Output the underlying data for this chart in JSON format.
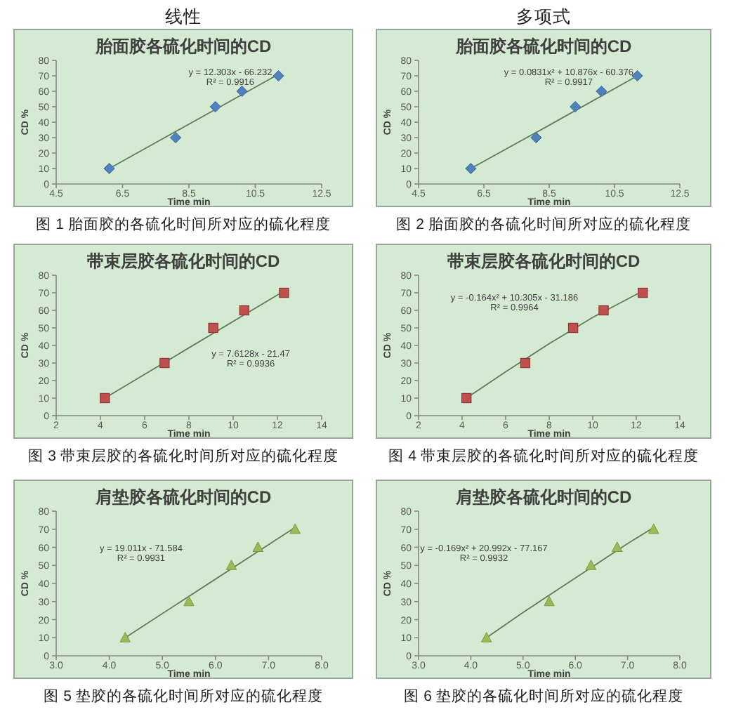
{
  "chart_data": [
    {
      "type": "scatter",
      "title": "胎面胶各硫化时间的CD",
      "xlabel": "Time min",
      "ylabel": "CD %",
      "xlim": [
        4.5,
        12.5
      ],
      "xticks": [
        4.5,
        6.5,
        8.5,
        10.5,
        12.5
      ],
      "ylim": [
        0,
        80
      ],
      "yticks": [
        0,
        10,
        20,
        30,
        40,
        50,
        60,
        70,
        80
      ],
      "series": [
        {
          "color": "#4f81bd",
          "marker": "diamond",
          "x": [
            6.1,
            8.1,
            9.3,
            10.1,
            11.2
          ],
          "values": [
            10,
            30,
            50,
            60,
            70
          ]
        },
        {
          "type": "line",
          "color": "#5e7d54",
          "x": [
            6.1,
            11.2
          ],
          "values": [
            10,
            71
          ]
        }
      ],
      "annotations": [
        "线性",
        "y = 12.303x - 66.232",
        "R² = 0.9916",
        "图 1 胎面胶的各硫化时间所对应的硫化程度"
      ]
    },
    {
      "type": "scatter",
      "title": "胎面胶各硫化时间的CD",
      "xlabel": "Time min",
      "ylabel": "CD %",
      "xlim": [
        4.5,
        12.5
      ],
      "xticks": [
        4.5,
        6.5,
        8.5,
        10.5,
        12.5
      ],
      "ylim": [
        0,
        80
      ],
      "yticks": [
        0,
        10,
        20,
        30,
        40,
        50,
        60,
        70,
        80
      ],
      "series": [
        {
          "color": "#4f81bd",
          "marker": "diamond",
          "x": [
            6.1,
            8.1,
            9.3,
            10.1,
            11.2
          ],
          "values": [
            10,
            30,
            50,
            60,
            70
          ]
        },
        {
          "type": "line",
          "color": "#5e7d54",
          "x": [
            6.1,
            8.5,
            11.2
          ],
          "values": [
            10,
            38,
            70
          ]
        }
      ],
      "annotations": [
        "多项式",
        "y = 0.0831x² + 10.876x - 60.376",
        "R² = 0.9917",
        "图 2 胎面胶的各硫化时间所对应的硫化程度"
      ]
    },
    {
      "type": "scatter",
      "title": "带束层胶各硫化时间的CD",
      "xlabel": "Time min",
      "ylabel": "CD %",
      "xlim": [
        2,
        14
      ],
      "xticks": [
        2,
        4,
        6,
        8,
        10,
        12,
        14
      ],
      "ylim": [
        0,
        80
      ],
      "yticks": [
        0,
        10,
        20,
        30,
        40,
        50,
        60,
        70,
        80
      ],
      "series": [
        {
          "color": "#c0504d",
          "marker": "square",
          "x": [
            4.2,
            6.9,
            9.1,
            10.5,
            12.3
          ],
          "values": [
            10,
            30,
            50,
            60,
            70
          ]
        },
        {
          "type": "line",
          "color": "#5e7d54",
          "x": [
            4.2,
            12.3
          ],
          "values": [
            10,
            71
          ]
        }
      ],
      "annotations": [
        "y = 7.6128x - 21.47",
        "R² = 0.9936",
        "图 3 带束层胶的各硫化时间所对应的硫化程度"
      ]
    },
    {
      "type": "scatter",
      "title": "带束层胶各硫化时间的CD",
      "xlabel": "Time min",
      "ylabel": "CD %",
      "xlim": [
        2,
        14
      ],
      "xticks": [
        2,
        4,
        6,
        8,
        10,
        12,
        14
      ],
      "ylim": [
        0,
        80
      ],
      "yticks": [
        0,
        10,
        20,
        30,
        40,
        50,
        60,
        70,
        80
      ],
      "series": [
        {
          "color": "#c0504d",
          "marker": "square",
          "x": [
            4.2,
            6.9,
            9.1,
            10.5,
            12.3
          ],
          "values": [
            10,
            30,
            50,
            60,
            70
          ]
        },
        {
          "type": "line",
          "color": "#5e7d54",
          "x": [
            4.2,
            6,
            8,
            10,
            12.3
          ],
          "values": [
            10,
            25,
            41,
            56,
            71
          ]
        }
      ],
      "annotations": [
        "y = -0.164x² + 10.305x - 31.186",
        "R² = 0.9964",
        "图 4 带束层胶的各硫化时间所对应的硫化程度"
      ]
    },
    {
      "type": "scatter",
      "title": "肩垫胶各硫化时间的CD",
      "xlabel": "Time min",
      "ylabel": "CD %",
      "xlim": [
        3,
        8
      ],
      "xticks": [
        {
          "value": 3,
          "label": "3.0"
        },
        {
          "value": 4,
          "label": "4.0"
        },
        {
          "value": 5,
          "label": "5.0"
        },
        {
          "value": 6,
          "label": "6.0"
        },
        {
          "value": 7,
          "label": "7.0"
        },
        {
          "value": 8,
          "label": "8.0"
        }
      ],
      "ylim": [
        0,
        80
      ],
      "yticks": [
        0,
        10,
        20,
        30,
        40,
        50,
        60,
        70,
        80
      ],
      "series": [
        {
          "color": "#9bbb59",
          "marker": "triangle",
          "x": [
            4.3,
            5.5,
            6.3,
            6.8,
            7.5
          ],
          "values": [
            10,
            30,
            50,
            60,
            70
          ]
        },
        {
          "type": "line",
          "color": "#5e7d54",
          "x": [
            4.3,
            7.5
          ],
          "values": [
            10,
            71
          ]
        }
      ],
      "annotations": [
        "y = 19.011x - 71.584",
        "R² = 0.9931",
        "图 5 垫胶的各硫化时间所对应的硫化程度"
      ]
    },
    {
      "type": "scatter",
      "title": "肩垫胶各硫化时间的CD",
      "xlabel": "Time min",
      "ylabel": "CD %",
      "xlim": [
        3,
        8
      ],
      "xticks": [
        {
          "value": 3,
          "label": "3.0"
        },
        {
          "value": 4,
          "label": "4.0"
        },
        {
          "value": 5,
          "label": "5.0"
        },
        {
          "value": 6,
          "label": "6.0"
        },
        {
          "value": 7,
          "label": "7.0"
        },
        {
          "value": 8,
          "label": "8.0"
        }
      ],
      "ylim": [
        0,
        80
      ],
      "yticks": [
        0,
        10,
        20,
        30,
        40,
        50,
        60,
        70,
        80
      ],
      "series": [
        {
          "color": "#9bbb59",
          "marker": "triangle",
          "x": [
            4.3,
            5.5,
            6.3,
            6.8,
            7.5
          ],
          "values": [
            10,
            30,
            50,
            60,
            70
          ]
        },
        {
          "type": "line",
          "color": "#5e7d54",
          "x": [
            4.3,
            5,
            6,
            7,
            7.5
          ],
          "values": [
            10,
            24,
            43,
            62,
            71
          ]
        }
      ],
      "annotations": [
        "y = -0.169x² + 20.992x - 77.167",
        "R² = 0.9932",
        "图 6 垫胶的各硫化时间所对应的硫化程度"
      ]
    }
  ]
}
